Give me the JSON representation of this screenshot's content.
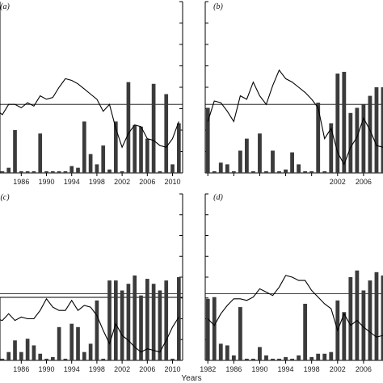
{
  "chart_data": {
    "type": "bar",
    "xlabel": "Years",
    "grid": false,
    "panels": [
      {
        "label": "(a)",
        "x": [
          1982,
          1983,
          1984,
          1985,
          1986,
          1987,
          1988,
          1989,
          1990,
          1991,
          1992,
          1993,
          1994,
          1995,
          1996,
          1997,
          1998,
          1999,
          2000,
          2001,
          2002,
          2003,
          2004,
          2005,
          2006,
          2007,
          2008,
          2009,
          2010,
          2011
        ],
        "bars": [
          0.15,
          0.01,
          0.03,
          0.25,
          0.01,
          0.01,
          0.01,
          0.23,
          0.01,
          0.01,
          0.01,
          0.01,
          0.04,
          0.03,
          0.3,
          0.11,
          0.05,
          0.16,
          0.02,
          0.3,
          0.01,
          0.53,
          0.28,
          0.27,
          0.2,
          0.52,
          0.01,
          0.46,
          0.05,
          0.29
        ],
        "line": [
          0.37,
          0.34,
          0.4,
          0.4,
          0.38,
          0.41,
          0.39,
          0.45,
          0.43,
          0.44,
          0.5,
          0.55,
          0.54,
          0.52,
          0.49,
          0.46,
          0.43,
          0.36,
          0.4,
          0.26,
          0.15,
          0.23,
          0.28,
          0.27,
          0.2,
          0.19,
          0.16,
          0.15,
          0.2,
          0.3
        ],
        "x_ticks": [
          1986,
          1990,
          1994,
          1998,
          2002,
          2006,
          2010
        ],
        "x_tick_labels": [
          "1986",
          "1990",
          "1994",
          "1998",
          "2002",
          "2006",
          "2010"
        ]
      },
      {
        "label": "(b)",
        "x": [
          1982,
          1983,
          1984,
          1985,
          1986,
          1987,
          1988,
          1989,
          1990,
          1991,
          1992,
          1993,
          1994,
          1995,
          1996,
          1997,
          1998,
          1999,
          2000,
          2001,
          2002,
          2003,
          2004,
          2005,
          2006,
          2007,
          2008,
          2009
        ],
        "bars": [
          0.38,
          0.01,
          0.06,
          0.05,
          0.01,
          0.13,
          0.2,
          0.01,
          0.23,
          0.01,
          0.13,
          0.01,
          0.02,
          0.12,
          0.05,
          0.01,
          0.01,
          0.41,
          0.01,
          0.29,
          0.58,
          0.59,
          0.35,
          0.38,
          0.4,
          0.45,
          0.5,
          0.5
        ],
        "line": [
          0.3,
          0.42,
          0.41,
          0.36,
          0.3,
          0.45,
          0.43,
          0.53,
          0.45,
          0.4,
          0.51,
          0.6,
          0.55,
          0.53,
          0.5,
          0.47,
          0.43,
          0.38,
          0.2,
          0.26,
          0.12,
          0.05,
          0.15,
          0.21,
          0.32,
          0.25,
          0.16,
          0.15
        ],
        "x_ticks": [
          1982,
          1986,
          1990,
          1994,
          1998,
          2002,
          2006
        ],
        "x_tick_labels": [
          "",
          "",
          "",
          "",
          "",
          "2002",
          "2006"
        ]
      },
      {
        "label": "(c)",
        "x": [
          1982,
          1983,
          1984,
          1985,
          1986,
          1987,
          1988,
          1989,
          1990,
          1991,
          1992,
          1993,
          1994,
          1995,
          1996,
          1997,
          1998,
          1999,
          2000,
          2001,
          2002,
          2003,
          2004,
          2005,
          2006,
          2007,
          2008,
          2009,
          2010,
          2011
        ],
        "bars": [
          0.04,
          0.01,
          0.05,
          0.12,
          0.05,
          0.13,
          0.09,
          0.04,
          0.01,
          0.02,
          0.2,
          0.01,
          0.22,
          0.2,
          0.05,
          0.1,
          0.36,
          0.01,
          0.48,
          0.48,
          0.42,
          0.46,
          0.51,
          0.39,
          0.49,
          0.46,
          0.42,
          0.48,
          0.01,
          0.5
        ],
        "line": [
          0.25,
          0.24,
          0.28,
          0.24,
          0.26,
          0.25,
          0.25,
          0.3,
          0.37,
          0.32,
          0.3,
          0.3,
          0.36,
          0.3,
          0.33,
          0.32,
          0.27,
          0.18,
          0.1,
          0.22,
          0.15,
          0.12,
          0.08,
          0.05,
          0.07,
          0.06,
          0.05,
          0.12,
          0.2,
          0.26
        ],
        "x_ticks": [
          1986,
          1990,
          1994,
          1998,
          2002,
          2006,
          2010
        ],
        "x_tick_labels": [
          "1986",
          "1990",
          "1994",
          "1998",
          "2002",
          "2006",
          "2010"
        ]
      },
      {
        "label": "(d)",
        "x": [
          1982,
          1983,
          1984,
          1985,
          1986,
          1987,
          1988,
          1989,
          1990,
          1991,
          1992,
          1993,
          1994,
          1995,
          1996,
          1997,
          1998,
          1999,
          2000,
          2001,
          2002,
          2003,
          2004,
          2005,
          2006,
          2007,
          2008,
          2009
        ],
        "bars": [
          0.37,
          0.38,
          0.1,
          0.09,
          0.03,
          0.32,
          0.01,
          0.01,
          0.08,
          0.03,
          0.01,
          0.01,
          0.02,
          0.01,
          0.03,
          0.34,
          0.02,
          0.04,
          0.04,
          0.05,
          0.36,
          0.29,
          0.5,
          0.54,
          0.42,
          0.48,
          0.53,
          0.51
        ],
        "line": [
          0.25,
          0.21,
          0.28,
          0.33,
          0.37,
          0.37,
          0.36,
          0.38,
          0.43,
          0.41,
          0.39,
          0.44,
          0.51,
          0.5,
          0.48,
          0.48,
          0.42,
          0.38,
          0.34,
          0.31,
          0.18,
          0.28,
          0.21,
          0.24,
          0.2,
          0.17,
          0.14,
          0.15
        ],
        "x_ticks": [
          1982,
          1986,
          1990,
          1994,
          1998,
          2002,
          2006
        ],
        "x_tick_labels": [
          "1982",
          "1986",
          "1990",
          "1994",
          "1998",
          "2002",
          "2006"
        ]
      }
    ]
  }
}
